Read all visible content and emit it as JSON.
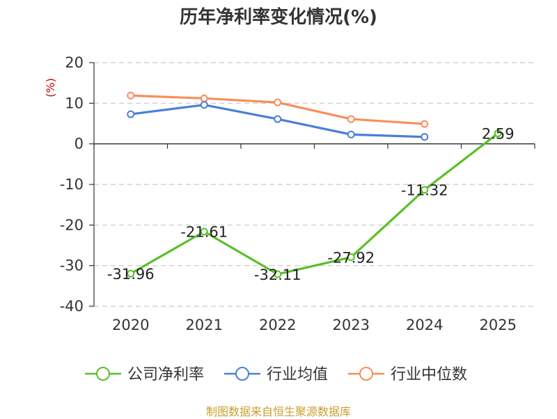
{
  "chart_data": {
    "type": "line",
    "title": "历年净利率变化情况(%)",
    "ylabel": "(%)",
    "xlabel": "",
    "categories": [
      "2020",
      "2021",
      "2022",
      "2023",
      "2024",
      "2025"
    ],
    "ylim": [
      -40,
      20
    ],
    "yticks": [
      20,
      10,
      0,
      -10,
      -20,
      -30,
      -40
    ],
    "ytick_labels": [
      "20",
      "10",
      "0",
      "-10",
      "-20",
      "-30",
      "-40"
    ],
    "grid": true,
    "legend_position": "bottom",
    "series": [
      {
        "name": "公司净利率",
        "color": "#5bbf27",
        "values": [
          -31.96,
          -21.61,
          -32.11,
          -27.92,
          -11.32,
          2.59
        ],
        "data_labels": [
          "-31.96",
          "-21.61",
          "-32.11",
          "-27.92",
          "-11.32",
          "2.59"
        ]
      },
      {
        "name": "行业均值",
        "color": "#4a7fd8",
        "values": [
          7.3,
          9.6,
          6.1,
          2.3,
          1.7,
          null
        ]
      },
      {
        "name": "行业中位数",
        "color": "#f98d5a",
        "values": [
          11.9,
          11.2,
          10.2,
          6.1,
          4.9,
          null
        ]
      }
    ]
  },
  "source_text": "制图数据来自恒生聚源数据库"
}
